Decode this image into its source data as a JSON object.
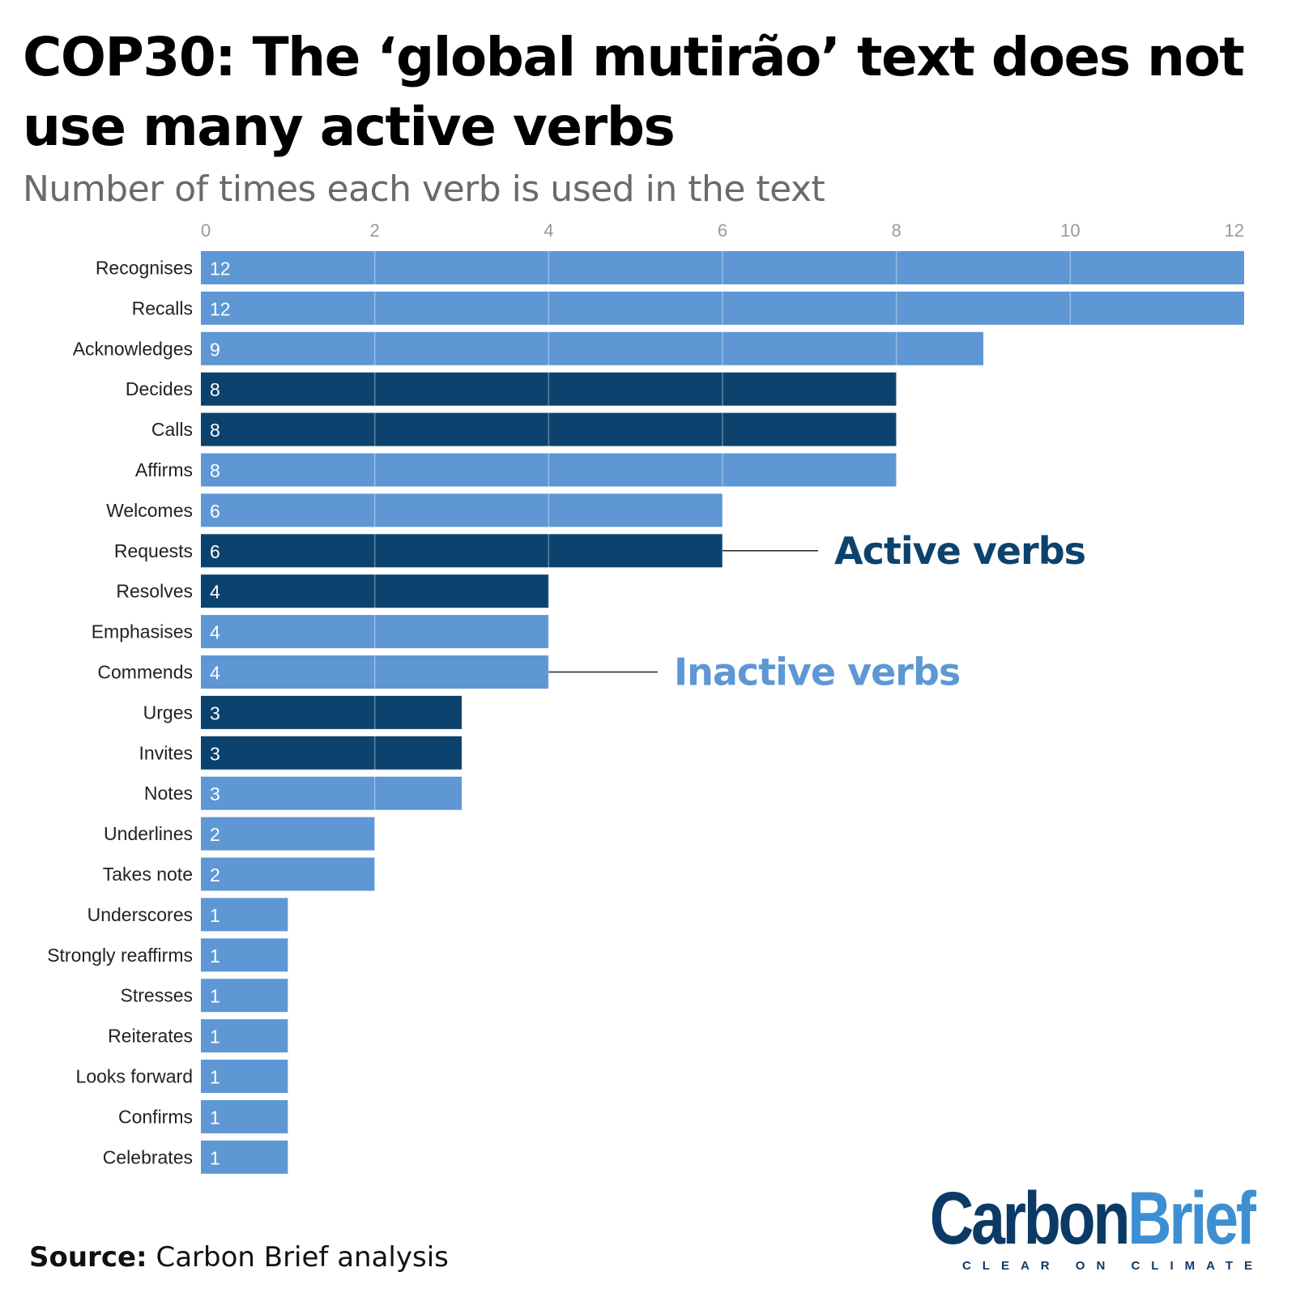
{
  "title": "COP30: The ‘global mutirão’ text does not use many active verbs",
  "subtitle": "Number of times each verb is used in the text",
  "source": {
    "label": "Source:",
    "text": "Carbon Brief analysis"
  },
  "logo": {
    "name_part1": "Carbon",
    "name_part2": "Brief",
    "tagline": "CLEAR ON CLIMATE"
  },
  "colors": {
    "active": "#0c436e",
    "inactive": "#5e97d4",
    "grid": "#ffffff"
  },
  "chart_data": {
    "type": "bar",
    "orientation": "horizontal",
    "x_ticks": [
      0,
      2,
      4,
      6,
      8,
      10,
      12
    ],
    "xlim": [
      0,
      12
    ],
    "grid": true,
    "categories": [
      "Recognises",
      "Recalls",
      "Acknowledges",
      "Decides",
      "Calls",
      "Affirms",
      "Welcomes",
      "Requests",
      "Resolves",
      "Emphasises",
      "Commends",
      "Urges",
      "Invites",
      "Notes",
      "Underlines",
      "Takes note",
      "Underscores",
      "Strongly reaffirms",
      "Stresses",
      "Reiterates",
      "Looks forward",
      "Confirms",
      "Celebrates"
    ],
    "values": [
      12,
      12,
      9,
      8,
      8,
      8,
      6,
      6,
      4,
      4,
      4,
      3,
      3,
      3,
      2,
      2,
      1,
      1,
      1,
      1,
      1,
      1,
      1
    ],
    "groups": [
      "inactive",
      "inactive",
      "inactive",
      "active",
      "active",
      "inactive",
      "inactive",
      "active",
      "active",
      "inactive",
      "inactive",
      "active",
      "active",
      "inactive",
      "inactive",
      "inactive",
      "inactive",
      "inactive",
      "inactive",
      "inactive",
      "inactive",
      "inactive",
      "inactive"
    ],
    "annotations": [
      {
        "text": "Active verbs",
        "group": "active",
        "category": "Requests"
      },
      {
        "text": "Inactive verbs",
        "group": "inactive",
        "category": "Commends"
      }
    ]
  }
}
